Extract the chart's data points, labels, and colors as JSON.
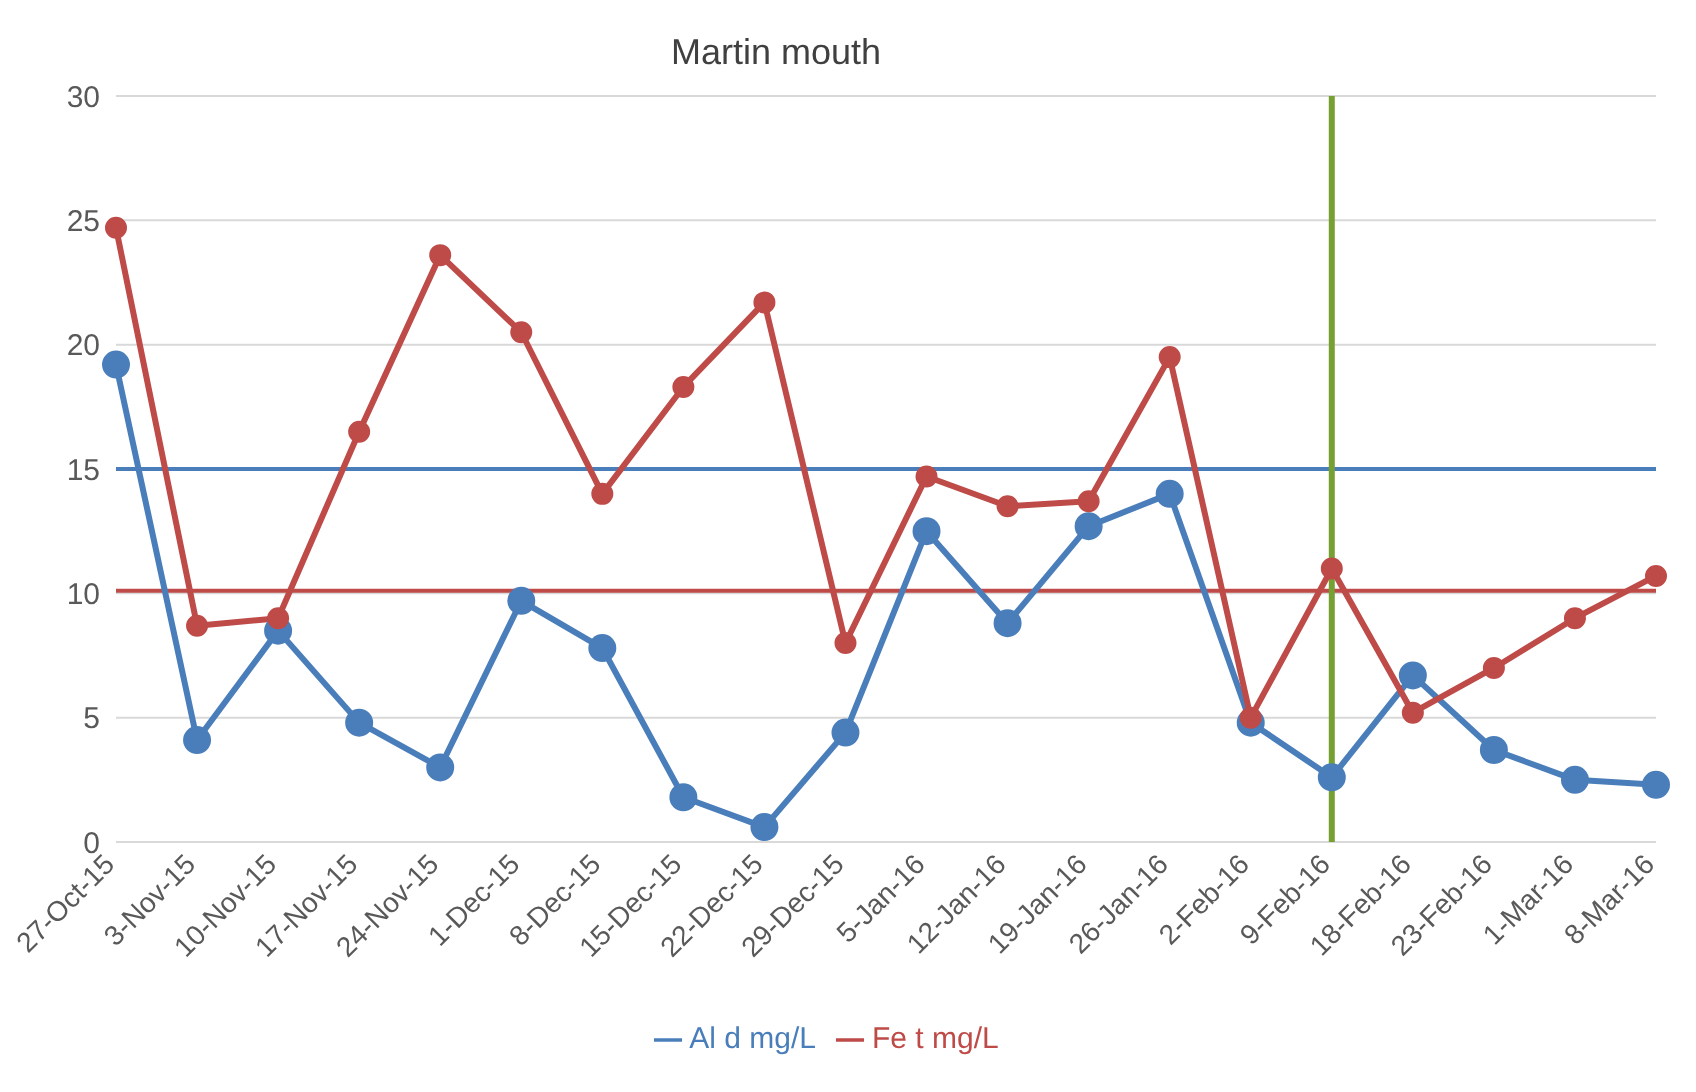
{
  "chart_data": {
    "type": "line",
    "title": "Martin mouth",
    "categories": [
      "27-Oct-15",
      "3-Nov-15",
      "10-Nov-15",
      "17-Nov-15",
      "24-Nov-15",
      "1-Dec-15",
      "8-Dec-15",
      "15-Dec-15",
      "22-Dec-15",
      "29-Dec-15",
      "5-Jan-16",
      "12-Jan-16",
      "19-Jan-16",
      "26-Jan-16",
      "2-Feb-16",
      "9-Feb-16",
      "18-Feb-16",
      "23-Feb-16",
      "1-Mar-16",
      "8-Mar-16"
    ],
    "series": [
      {
        "name": "Al d mg/L",
        "color": "#4a7ebb",
        "values": [
          19.2,
          4.1,
          8.5,
          4.8,
          3.0,
          9.7,
          7.8,
          1.8,
          0.6,
          4.4,
          12.5,
          8.8,
          12.7,
          14.0,
          4.8,
          2.6,
          6.7,
          3.7,
          2.5,
          2.3
        ]
      },
      {
        "name": "Fe t mg/L",
        "color": "#be4b48",
        "values": [
          24.7,
          8.7,
          9.0,
          16.5,
          23.6,
          20.5,
          14.0,
          18.3,
          21.7,
          8.0,
          14.7,
          13.5,
          13.7,
          19.5,
          5.0,
          11.0,
          5.2,
          7.0,
          9.0,
          10.7
        ]
      }
    ],
    "ylim": [
      0,
      30
    ],
    "yticks": [
      0,
      5,
      10,
      15,
      20,
      25,
      30
    ],
    "grid": "y",
    "legend": "bottom",
    "marker": "circle",
    "line_style": "solid",
    "ref_lines": [
      {
        "axis": "y",
        "value": 15,
        "color": "#4a7ebb"
      },
      {
        "axis": "y",
        "value": 10.1,
        "color": "#be4b48"
      },
      {
        "axis": "x",
        "value": "9-Feb-16",
        "color": "#77a033"
      }
    ]
  }
}
